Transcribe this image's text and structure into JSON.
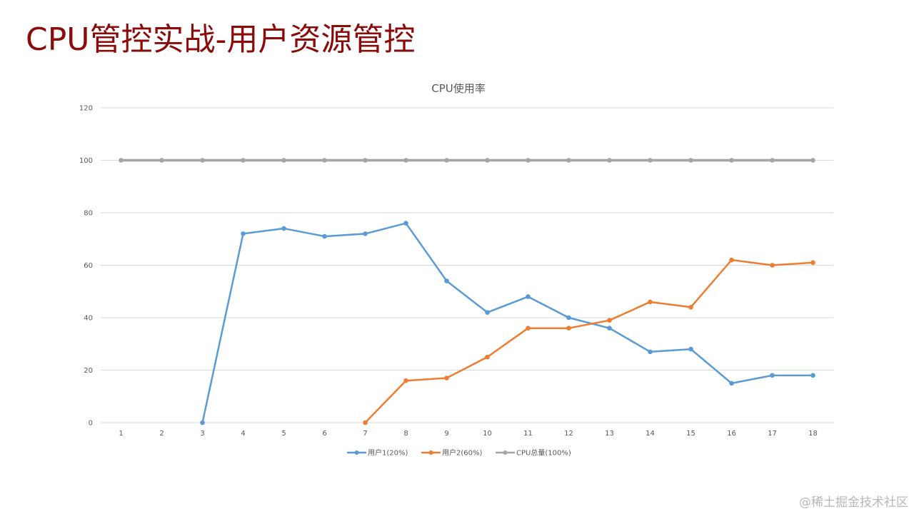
{
  "slide": {
    "title": "CPU管控实战-用户资源管控",
    "title_color": "#8b0a0a",
    "watermark": "@稀土掘金技术社区"
  },
  "chart_data": {
    "type": "line",
    "title": "CPU使用率",
    "xlabel": "",
    "ylabel": "",
    "categories": [
      1,
      2,
      3,
      4,
      5,
      6,
      7,
      8,
      9,
      10,
      11,
      12,
      13,
      14,
      15,
      16,
      17,
      18
    ],
    "ylim": [
      0,
      120
    ],
    "yticks": [
      0,
      20,
      40,
      60,
      80,
      100,
      120
    ],
    "grid": true,
    "legend_position": "bottom",
    "series": [
      {
        "name": "用户1(20%)",
        "color": "#5b9bd5",
        "values": [
          null,
          null,
          0,
          72,
          74,
          71,
          72,
          76,
          54,
          42,
          48,
          40,
          36,
          27,
          28,
          15,
          18,
          18
        ]
      },
      {
        "name": "用户2(60%)",
        "color": "#ed7d31",
        "values": [
          null,
          null,
          null,
          null,
          null,
          null,
          0,
          16,
          17,
          25,
          36,
          36,
          39,
          46,
          44,
          62,
          60,
          61
        ]
      },
      {
        "name": "CPU总量(100%)",
        "color": "#a5a5a5",
        "values": [
          100,
          100,
          100,
          100,
          100,
          100,
          100,
          100,
          100,
          100,
          100,
          100,
          100,
          100,
          100,
          100,
          100,
          100
        ]
      }
    ]
  }
}
